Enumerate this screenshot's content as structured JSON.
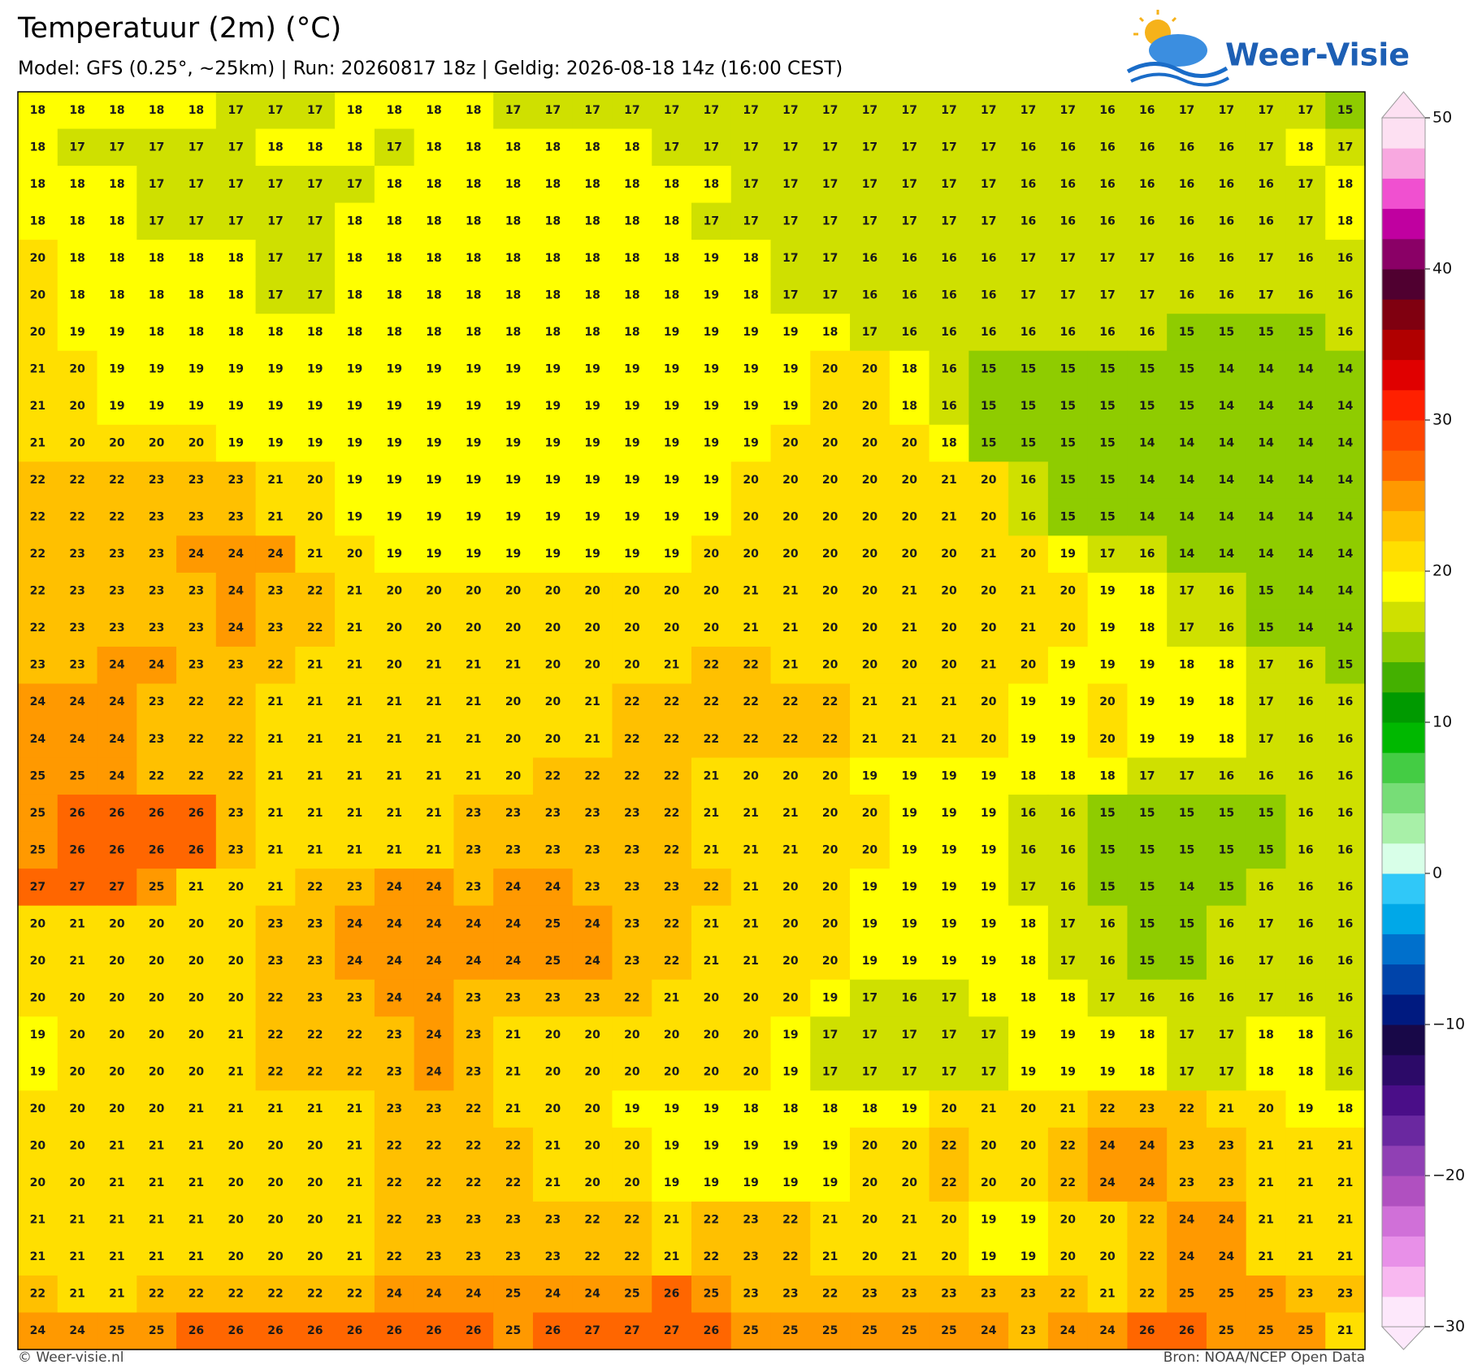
{
  "title": "Temperatuur (2m) (°C)",
  "subtitle": "Model: GFS (0.25°, ~25km)  |  Run: 20260817 18z  |  Geldig: 2026-08-18 14z (16:00 CEST)",
  "logo": "Weer-Visie",
  "footer_left": "© Weer-visie.nl",
  "footer_right": "Bron: NOAA/NCEP Open Data",
  "colorbar": {
    "clim": [
      -30,
      50
    ],
    "ticks": [
      {
        "value": -30,
        "label": "−30"
      },
      {
        "value": -20,
        "label": "−20"
      },
      {
        "value": -10,
        "label": "−10"
      },
      0,
      10,
      20,
      30,
      40,
      50
    ],
    "colors": [
      "#fde8fb",
      "#f8b8f0",
      "#e890e8",
      "#d070d8",
      "#b050c0",
      "#9040b4",
      "#6a28a0",
      "#4a0e88",
      "#2c0a68",
      "#180848",
      "#001a80",
      "#0044aa",
      "#0070cc",
      "#00a8e8",
      "#30c8f8",
      "#d8ffe8",
      "#a8f0a8",
      "#77dd77",
      "#44cc44",
      "#00b800",
      "#009a00",
      "#44b000",
      "#8fcc00",
      "#cfe000",
      "#ffff00",
      "#ffdf00",
      "#ffc000",
      "#ff9900",
      "#ff6600",
      "#ff4400",
      "#ff2000",
      "#e00000",
      "#b00000",
      "#800010",
      "#500030",
      "#8a0066",
      "#c000a0",
      "#f050d0",
      "#f8a8e0",
      "#fde0f2"
    ]
  },
  "grid": [
    [
      18,
      18,
      18,
      18,
      18,
      17,
      17,
      17,
      18,
      18,
      18,
      18,
      17,
      17,
      17,
      17,
      17,
      17,
      17,
      17,
      17,
      17,
      17,
      17,
      17,
      17,
      17,
      16,
      16,
      17,
      17,
      17,
      17,
      15
    ],
    [
      18,
      17,
      17,
      17,
      17,
      17,
      18,
      18,
      18,
      17,
      18,
      18,
      18,
      18,
      18,
      18,
      17,
      17,
      17,
      17,
      17,
      17,
      17,
      17,
      17,
      16,
      16,
      16,
      16,
      16,
      16,
      17,
      18,
      17
    ],
    [
      18,
      18,
      18,
      17,
      17,
      17,
      17,
      17,
      17,
      18,
      18,
      18,
      18,
      18,
      18,
      18,
      18,
      18,
      17,
      17,
      17,
      17,
      17,
      17,
      17,
      16,
      16,
      16,
      16,
      16,
      16,
      16,
      17,
      18
    ],
    [
      18,
      18,
      18,
      17,
      17,
      17,
      17,
      17,
      18,
      18,
      18,
      18,
      18,
      18,
      18,
      18,
      18,
      17,
      17,
      17,
      17,
      17,
      17,
      17,
      17,
      16,
      16,
      16,
      16,
      16,
      16,
      16,
      17,
      18
    ],
    [
      20,
      18,
      18,
      18,
      18,
      18,
      17,
      17,
      18,
      18,
      18,
      18,
      18,
      18,
      18,
      18,
      18,
      19,
      18,
      17,
      17,
      16,
      16,
      16,
      16,
      17,
      17,
      17,
      17,
      16,
      16,
      17,
      16,
      16
    ],
    [
      20,
      18,
      18,
      18,
      18,
      18,
      17,
      17,
      18,
      18,
      18,
      18,
      18,
      18,
      18,
      18,
      18,
      19,
      18,
      17,
      17,
      16,
      16,
      16,
      16,
      17,
      17,
      17,
      17,
      16,
      16,
      17,
      16,
      16
    ],
    [
      20,
      19,
      19,
      18,
      18,
      18,
      18,
      18,
      18,
      18,
      18,
      18,
      18,
      18,
      18,
      18,
      19,
      19,
      19,
      19,
      18,
      17,
      16,
      16,
      16,
      16,
      16,
      16,
      16,
      15,
      15,
      15,
      15,
      16
    ],
    [
      21,
      20,
      19,
      19,
      19,
      19,
      19,
      19,
      19,
      19,
      19,
      19,
      19,
      19,
      19,
      19,
      19,
      19,
      19,
      19,
      20,
      20,
      18,
      16,
      15,
      15,
      15,
      15,
      15,
      15,
      14,
      14,
      14,
      14
    ],
    [
      21,
      20,
      19,
      19,
      19,
      19,
      19,
      19,
      19,
      19,
      19,
      19,
      19,
      19,
      19,
      19,
      19,
      19,
      19,
      19,
      20,
      20,
      18,
      16,
      15,
      15,
      15,
      15,
      15,
      15,
      14,
      14,
      14,
      14
    ],
    [
      21,
      20,
      20,
      20,
      20,
      19,
      19,
      19,
      19,
      19,
      19,
      19,
      19,
      19,
      19,
      19,
      19,
      19,
      19,
      20,
      20,
      20,
      20,
      18,
      15,
      15,
      15,
      15,
      14,
      14,
      14,
      14,
      14,
      14
    ],
    [
      22,
      22,
      22,
      23,
      23,
      23,
      21,
      20,
      19,
      19,
      19,
      19,
      19,
      19,
      19,
      19,
      19,
      19,
      20,
      20,
      20,
      20,
      20,
      21,
      20,
      16,
      15,
      15,
      14,
      14,
      14,
      14,
      14,
      14
    ],
    [
      22,
      22,
      22,
      23,
      23,
      23,
      21,
      20,
      19,
      19,
      19,
      19,
      19,
      19,
      19,
      19,
      19,
      19,
      20,
      20,
      20,
      20,
      20,
      21,
      20,
      16,
      15,
      15,
      14,
      14,
      14,
      14,
      14,
      14
    ],
    [
      22,
      23,
      23,
      23,
      24,
      24,
      24,
      21,
      20,
      19,
      19,
      19,
      19,
      19,
      19,
      19,
      19,
      20,
      20,
      20,
      20,
      20,
      20,
      20,
      21,
      20,
      19,
      17,
      16,
      14,
      14,
      14,
      14,
      14
    ],
    [
      22,
      23,
      23,
      23,
      23,
      24,
      23,
      22,
      21,
      20,
      20,
      20,
      20,
      20,
      20,
      20,
      20,
      20,
      21,
      21,
      20,
      20,
      21,
      20,
      20,
      21,
      20,
      19,
      18,
      17,
      16,
      15,
      14,
      14
    ],
    [
      22,
      23,
      23,
      23,
      23,
      24,
      23,
      22,
      21,
      20,
      20,
      20,
      20,
      20,
      20,
      20,
      20,
      20,
      21,
      21,
      20,
      20,
      21,
      20,
      20,
      21,
      20,
      19,
      18,
      17,
      16,
      15,
      14,
      14
    ],
    [
      23,
      23,
      24,
      24,
      23,
      23,
      22,
      21,
      21,
      20,
      21,
      21,
      21,
      20,
      20,
      20,
      21,
      22,
      22,
      21,
      20,
      20,
      20,
      20,
      21,
      20,
      19,
      19,
      19,
      18,
      18,
      17,
      16,
      15
    ],
    [
      24,
      24,
      24,
      23,
      22,
      22,
      21,
      21,
      21,
      21,
      21,
      21,
      20,
      20,
      21,
      22,
      22,
      22,
      22,
      22,
      22,
      21,
      21,
      21,
      20,
      19,
      19,
      20,
      19,
      19,
      18,
      17,
      16,
      16
    ],
    [
      24,
      24,
      24,
      23,
      22,
      22,
      21,
      21,
      21,
      21,
      21,
      21,
      20,
      20,
      21,
      22,
      22,
      22,
      22,
      22,
      22,
      21,
      21,
      21,
      20,
      19,
      19,
      20,
      19,
      19,
      18,
      17,
      16,
      16
    ],
    [
      25,
      25,
      24,
      22,
      22,
      22,
      21,
      21,
      21,
      21,
      21,
      21,
      20,
      22,
      22,
      22,
      22,
      21,
      20,
      20,
      20,
      19,
      19,
      19,
      19,
      18,
      18,
      18,
      17,
      17,
      16,
      16,
      16,
      16
    ],
    [
      25,
      26,
      26,
      26,
      26,
      23,
      21,
      21,
      21,
      21,
      21,
      23,
      23,
      23,
      23,
      23,
      22,
      21,
      21,
      21,
      20,
      20,
      19,
      19,
      19,
      16,
      16,
      15,
      15,
      15,
      15,
      15,
      16,
      16
    ],
    [
      25,
      26,
      26,
      26,
      26,
      23,
      21,
      21,
      21,
      21,
      21,
      23,
      23,
      23,
      23,
      23,
      22,
      21,
      21,
      21,
      20,
      20,
      19,
      19,
      19,
      16,
      16,
      15,
      15,
      15,
      15,
      15,
      16,
      16
    ],
    [
      27,
      27,
      27,
      25,
      21,
      20,
      21,
      22,
      23,
      24,
      24,
      23,
      24,
      24,
      23,
      23,
      23,
      22,
      21,
      20,
      20,
      19,
      19,
      19,
      19,
      17,
      16,
      15,
      15,
      14,
      15,
      16,
      16,
      16
    ],
    [
      20,
      21,
      20,
      20,
      20,
      20,
      23,
      23,
      24,
      24,
      24,
      24,
      24,
      25,
      24,
      23,
      22,
      21,
      21,
      20,
      20,
      19,
      19,
      19,
      19,
      18,
      17,
      16,
      15,
      15,
      16,
      17,
      16,
      16
    ],
    [
      20,
      21,
      20,
      20,
      20,
      20,
      23,
      23,
      24,
      24,
      24,
      24,
      24,
      25,
      24,
      23,
      22,
      21,
      21,
      20,
      20,
      19,
      19,
      19,
      19,
      18,
      17,
      16,
      15,
      15,
      16,
      17,
      16,
      16
    ],
    [
      20,
      20,
      20,
      20,
      20,
      20,
      22,
      23,
      23,
      24,
      24,
      23,
      23,
      23,
      23,
      22,
      21,
      20,
      20,
      20,
      19,
      17,
      16,
      17,
      18,
      18,
      18,
      17,
      16,
      16,
      16,
      17,
      16,
      16
    ],
    [
      19,
      20,
      20,
      20,
      20,
      21,
      22,
      22,
      22,
      23,
      24,
      23,
      21,
      20,
      20,
      20,
      20,
      20,
      20,
      19,
      17,
      17,
      17,
      17,
      17,
      19,
      19,
      19,
      18,
      17,
      17,
      18,
      18,
      16
    ],
    [
      19,
      20,
      20,
      20,
      20,
      21,
      22,
      22,
      22,
      23,
      24,
      23,
      21,
      20,
      20,
      20,
      20,
      20,
      20,
      19,
      17,
      17,
      17,
      17,
      17,
      19,
      19,
      19,
      18,
      17,
      17,
      18,
      18,
      16
    ],
    [
      20,
      20,
      20,
      20,
      21,
      21,
      21,
      21,
      21,
      23,
      23,
      22,
      21,
      20,
      20,
      19,
      19,
      19,
      18,
      18,
      18,
      18,
      19,
      20,
      21,
      20,
      21,
      22,
      23,
      22,
      21,
      20,
      19,
      18
    ],
    [
      20,
      20,
      21,
      21,
      21,
      20,
      20,
      20,
      21,
      22,
      22,
      22,
      22,
      21,
      20,
      20,
      19,
      19,
      19,
      19,
      19,
      20,
      20,
      22,
      20,
      20,
      22,
      24,
      24,
      23,
      23,
      21,
      21,
      21
    ],
    [
      20,
      20,
      21,
      21,
      21,
      20,
      20,
      20,
      21,
      22,
      22,
      22,
      22,
      21,
      20,
      20,
      19,
      19,
      19,
      19,
      19,
      20,
      20,
      22,
      20,
      20,
      22,
      24,
      24,
      23,
      23,
      21,
      21,
      21
    ],
    [
      21,
      21,
      21,
      21,
      21,
      20,
      20,
      20,
      21,
      22,
      23,
      23,
      23,
      23,
      22,
      22,
      21,
      22,
      23,
      22,
      21,
      20,
      21,
      20,
      19,
      19,
      20,
      20,
      22,
      24,
      24,
      21,
      21,
      21
    ],
    [
      21,
      21,
      21,
      21,
      21,
      20,
      20,
      20,
      21,
      22,
      23,
      23,
      23,
      23,
      22,
      22,
      21,
      22,
      23,
      22,
      21,
      20,
      21,
      20,
      19,
      19,
      20,
      20,
      22,
      24,
      24,
      21,
      21,
      21
    ],
    [
      22,
      21,
      21,
      22,
      22,
      22,
      22,
      22,
      22,
      24,
      24,
      24,
      25,
      24,
      24,
      25,
      26,
      25,
      23,
      23,
      22,
      23,
      23,
      23,
      23,
      23,
      22,
      21,
      22,
      25,
      25,
      25,
      23,
      23
    ],
    [
      24,
      24,
      25,
      25,
      26,
      26,
      26,
      26,
      26,
      26,
      26,
      26,
      25,
      26,
      27,
      27,
      27,
      26,
      25,
      25,
      25,
      25,
      25,
      25,
      24,
      23,
      24,
      24,
      26,
      26,
      25,
      25,
      25,
      21
    ]
  ]
}
